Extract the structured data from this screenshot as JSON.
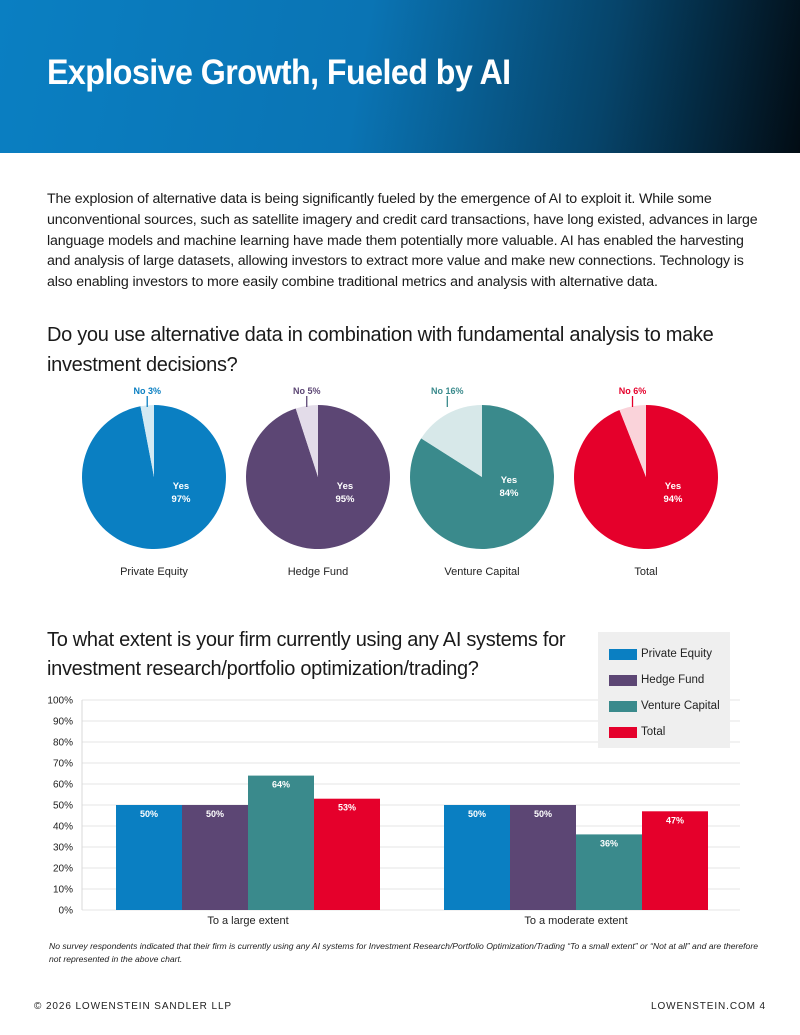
{
  "header": {
    "title": "Explosive Growth, Fueled by AI"
  },
  "intro": "The explosion of alternative data is being significantly fueled by the emergence of AI to exploit it. While some unconventional sources, such as satellite imagery and credit card transactions, have long existed, advances in large language models and machine learning have made them potentially more valuable. AI has enabled the harvesting and analysis of large datasets, allowing investors to extract more value and make new connections. Technology is also enabling investors to more easily combine traditional metrics and analysis with alternative data.",
  "question1": "Do you use alternative data in combination with fundamental analysis to make investment decisions?",
  "question2": "To what extent is your firm currently using any AI systems for investment research/portfolio optimization/trading?",
  "footnote": "No survey respondents indicated that their firm is currently using any AI systems for Investment Research/Portfolio Optimization/Trading “To a small extent” or “Not at all” and are therefore not represented in the above chart.",
  "footer": {
    "left": "© 2026 LOWENSTEIN SANDLER LLP",
    "right": "LOWENSTEIN.COM  4"
  },
  "chart_data": [
    {
      "type": "pie",
      "title": "",
      "pies": [
        {
          "name": "Private Equity",
          "yes": 97,
          "no": 3,
          "yes_label": "Yes",
          "yes_pct": "97%",
          "no_label": "No 3%",
          "color": "#0a7fc2",
          "light": "#d3e9f3"
        },
        {
          "name": "Hedge Fund",
          "yes": 95,
          "no": 5,
          "yes_label": "Yes",
          "yes_pct": "95%",
          "no_label": "No 5%",
          "color": "#5c4674",
          "light": "#e3dce9"
        },
        {
          "name": "Venture Capital",
          "yes": 84,
          "no": 16,
          "yes_label": "Yes",
          "yes_pct": "84%",
          "no_label": "No 16%",
          "color": "#3a8a8c",
          "light": "#d7e8e9"
        },
        {
          "name": "Total",
          "yes": 94,
          "no": 6,
          "yes_label": "Yes",
          "yes_pct": "94%",
          "no_label": "No 6%",
          "color": "#e5002b",
          "light": "#fad3da"
        }
      ]
    },
    {
      "type": "bar",
      "title": "",
      "categories": [
        "To a large extent",
        "To a moderate extent"
      ],
      "series": [
        {
          "name": "Private Equity",
          "values": [
            50,
            50
          ],
          "labels": [
            "50%",
            "50%"
          ],
          "color": "#0a7fc2"
        },
        {
          "name": "Hedge Fund",
          "values": [
            50,
            50
          ],
          "labels": [
            "50%",
            "50%"
          ],
          "color": "#5c4674"
        },
        {
          "name": "Venture Capital",
          "values": [
            64,
            36
          ],
          "labels": [
            "64%",
            "36%"
          ],
          "color": "#3a8a8c"
        },
        {
          "name": "Total",
          "values": [
            53,
            47
          ],
          "labels": [
            "53%",
            "47%"
          ],
          "color": "#e5002b"
        }
      ],
      "yticks": [
        "0%",
        "10%",
        "20%",
        "30%",
        "40%",
        "50%",
        "60%",
        "70%",
        "80%",
        "90%",
        "100%"
      ],
      "ylim": [
        0,
        100
      ],
      "grid": true,
      "legend": "top-right"
    }
  ]
}
